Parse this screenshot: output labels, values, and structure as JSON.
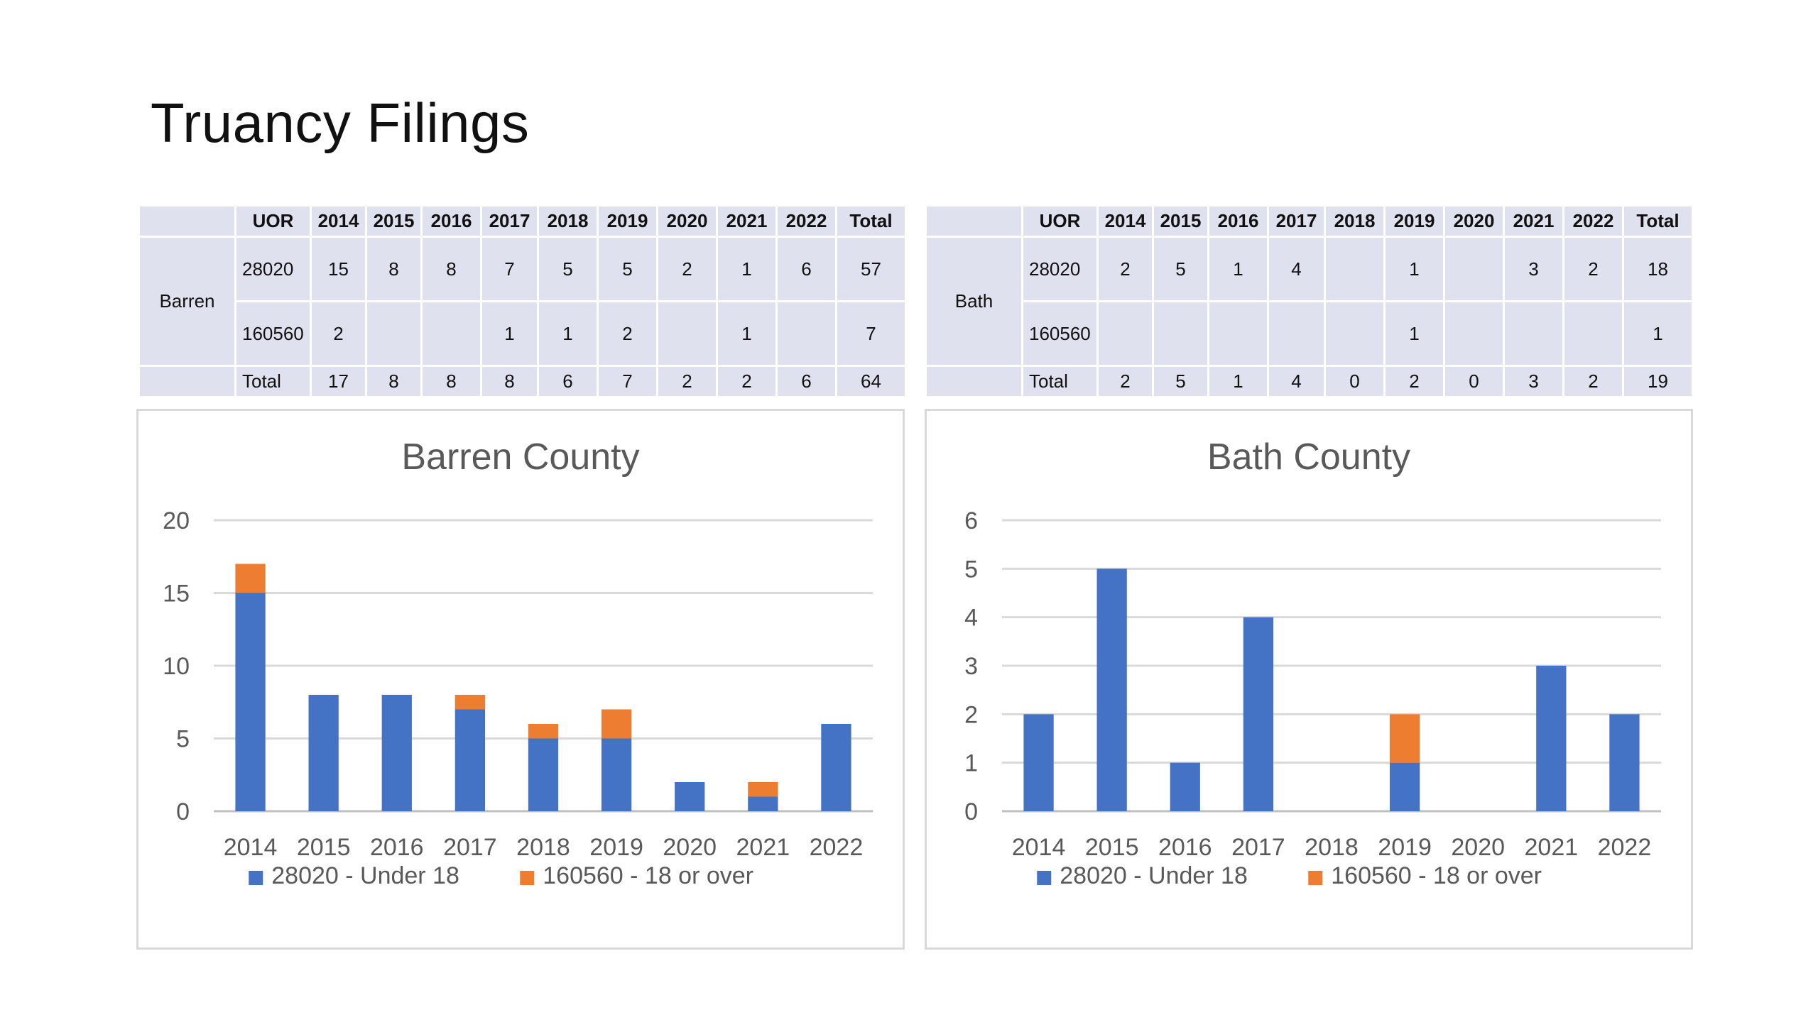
{
  "slide": {
    "title": "Truancy Filings"
  },
  "tables": [
    {
      "county": "Barren",
      "header": [
        "UOR",
        "2014",
        "2015",
        "2016",
        "2017",
        "2018",
        "2019",
        "2020",
        "2021",
        "2022",
        "Total"
      ],
      "rows": [
        [
          "28020",
          "15",
          "8",
          "8",
          "7",
          "5",
          "5",
          "2",
          "1",
          "6",
          "57"
        ],
        [
          "160560",
          "2",
          "",
          "",
          "1",
          "1",
          "2",
          "",
          "1",
          "",
          "7"
        ],
        [
          "Total",
          "17",
          "8",
          "8",
          "8",
          "6",
          "7",
          "2",
          "2",
          "6",
          "64"
        ]
      ]
    },
    {
      "county": "Bath",
      "header": [
        "UOR",
        "2014",
        "2015",
        "2016",
        "2017",
        "2018",
        "2019",
        "2020",
        "2021",
        "2022",
        "Total"
      ],
      "rows": [
        [
          "28020",
          "2",
          "5",
          "1",
          "4",
          "",
          "1",
          "",
          "3",
          "2",
          "18"
        ],
        [
          "160560",
          "",
          "",
          "",
          "",
          "",
          "1",
          "",
          "",
          "",
          "1"
        ],
        [
          "Total",
          "2",
          "5",
          "1",
          "4",
          "0",
          "2",
          "0",
          "3",
          "2",
          "19"
        ]
      ]
    }
  ],
  "chart_data": [
    {
      "type": "bar",
      "stacked": true,
      "title": "Barren County",
      "categories": [
        "2014",
        "2015",
        "2016",
        "2017",
        "2018",
        "2019",
        "2020",
        "2021",
        "2022"
      ],
      "series": [
        {
          "name": "28020 - Under 18",
          "values": [
            15,
            8,
            8,
            7,
            5,
            5,
            2,
            1,
            6
          ],
          "color": "#4472c4"
        },
        {
          "name": "160560 - 18 or over",
          "values": [
            2,
            0,
            0,
            1,
            1,
            2,
            0,
            1,
            0
          ],
          "color": "#ed7d31"
        }
      ],
      "ylim": [
        0,
        20
      ],
      "yticks": [
        0,
        5,
        10,
        15,
        20
      ],
      "grid": true,
      "legend": "bottom"
    },
    {
      "type": "bar",
      "stacked": true,
      "title": "Bath County",
      "categories": [
        "2014",
        "2015",
        "2016",
        "2017",
        "2018",
        "2019",
        "2020",
        "2021",
        "2022"
      ],
      "series": [
        {
          "name": "28020 - Under 18",
          "values": [
            2,
            5,
            1,
            4,
            0,
            1,
            0,
            3,
            2
          ],
          "color": "#4472c4"
        },
        {
          "name": "160560 - 18 or over",
          "values": [
            0,
            0,
            0,
            0,
            0,
            1,
            0,
            0,
            0
          ],
          "color": "#ed7d31"
        }
      ],
      "ylim": [
        0,
        6
      ],
      "yticks": [
        0,
        1,
        2,
        3,
        4,
        5,
        6
      ],
      "grid": true,
      "legend": "bottom"
    }
  ]
}
